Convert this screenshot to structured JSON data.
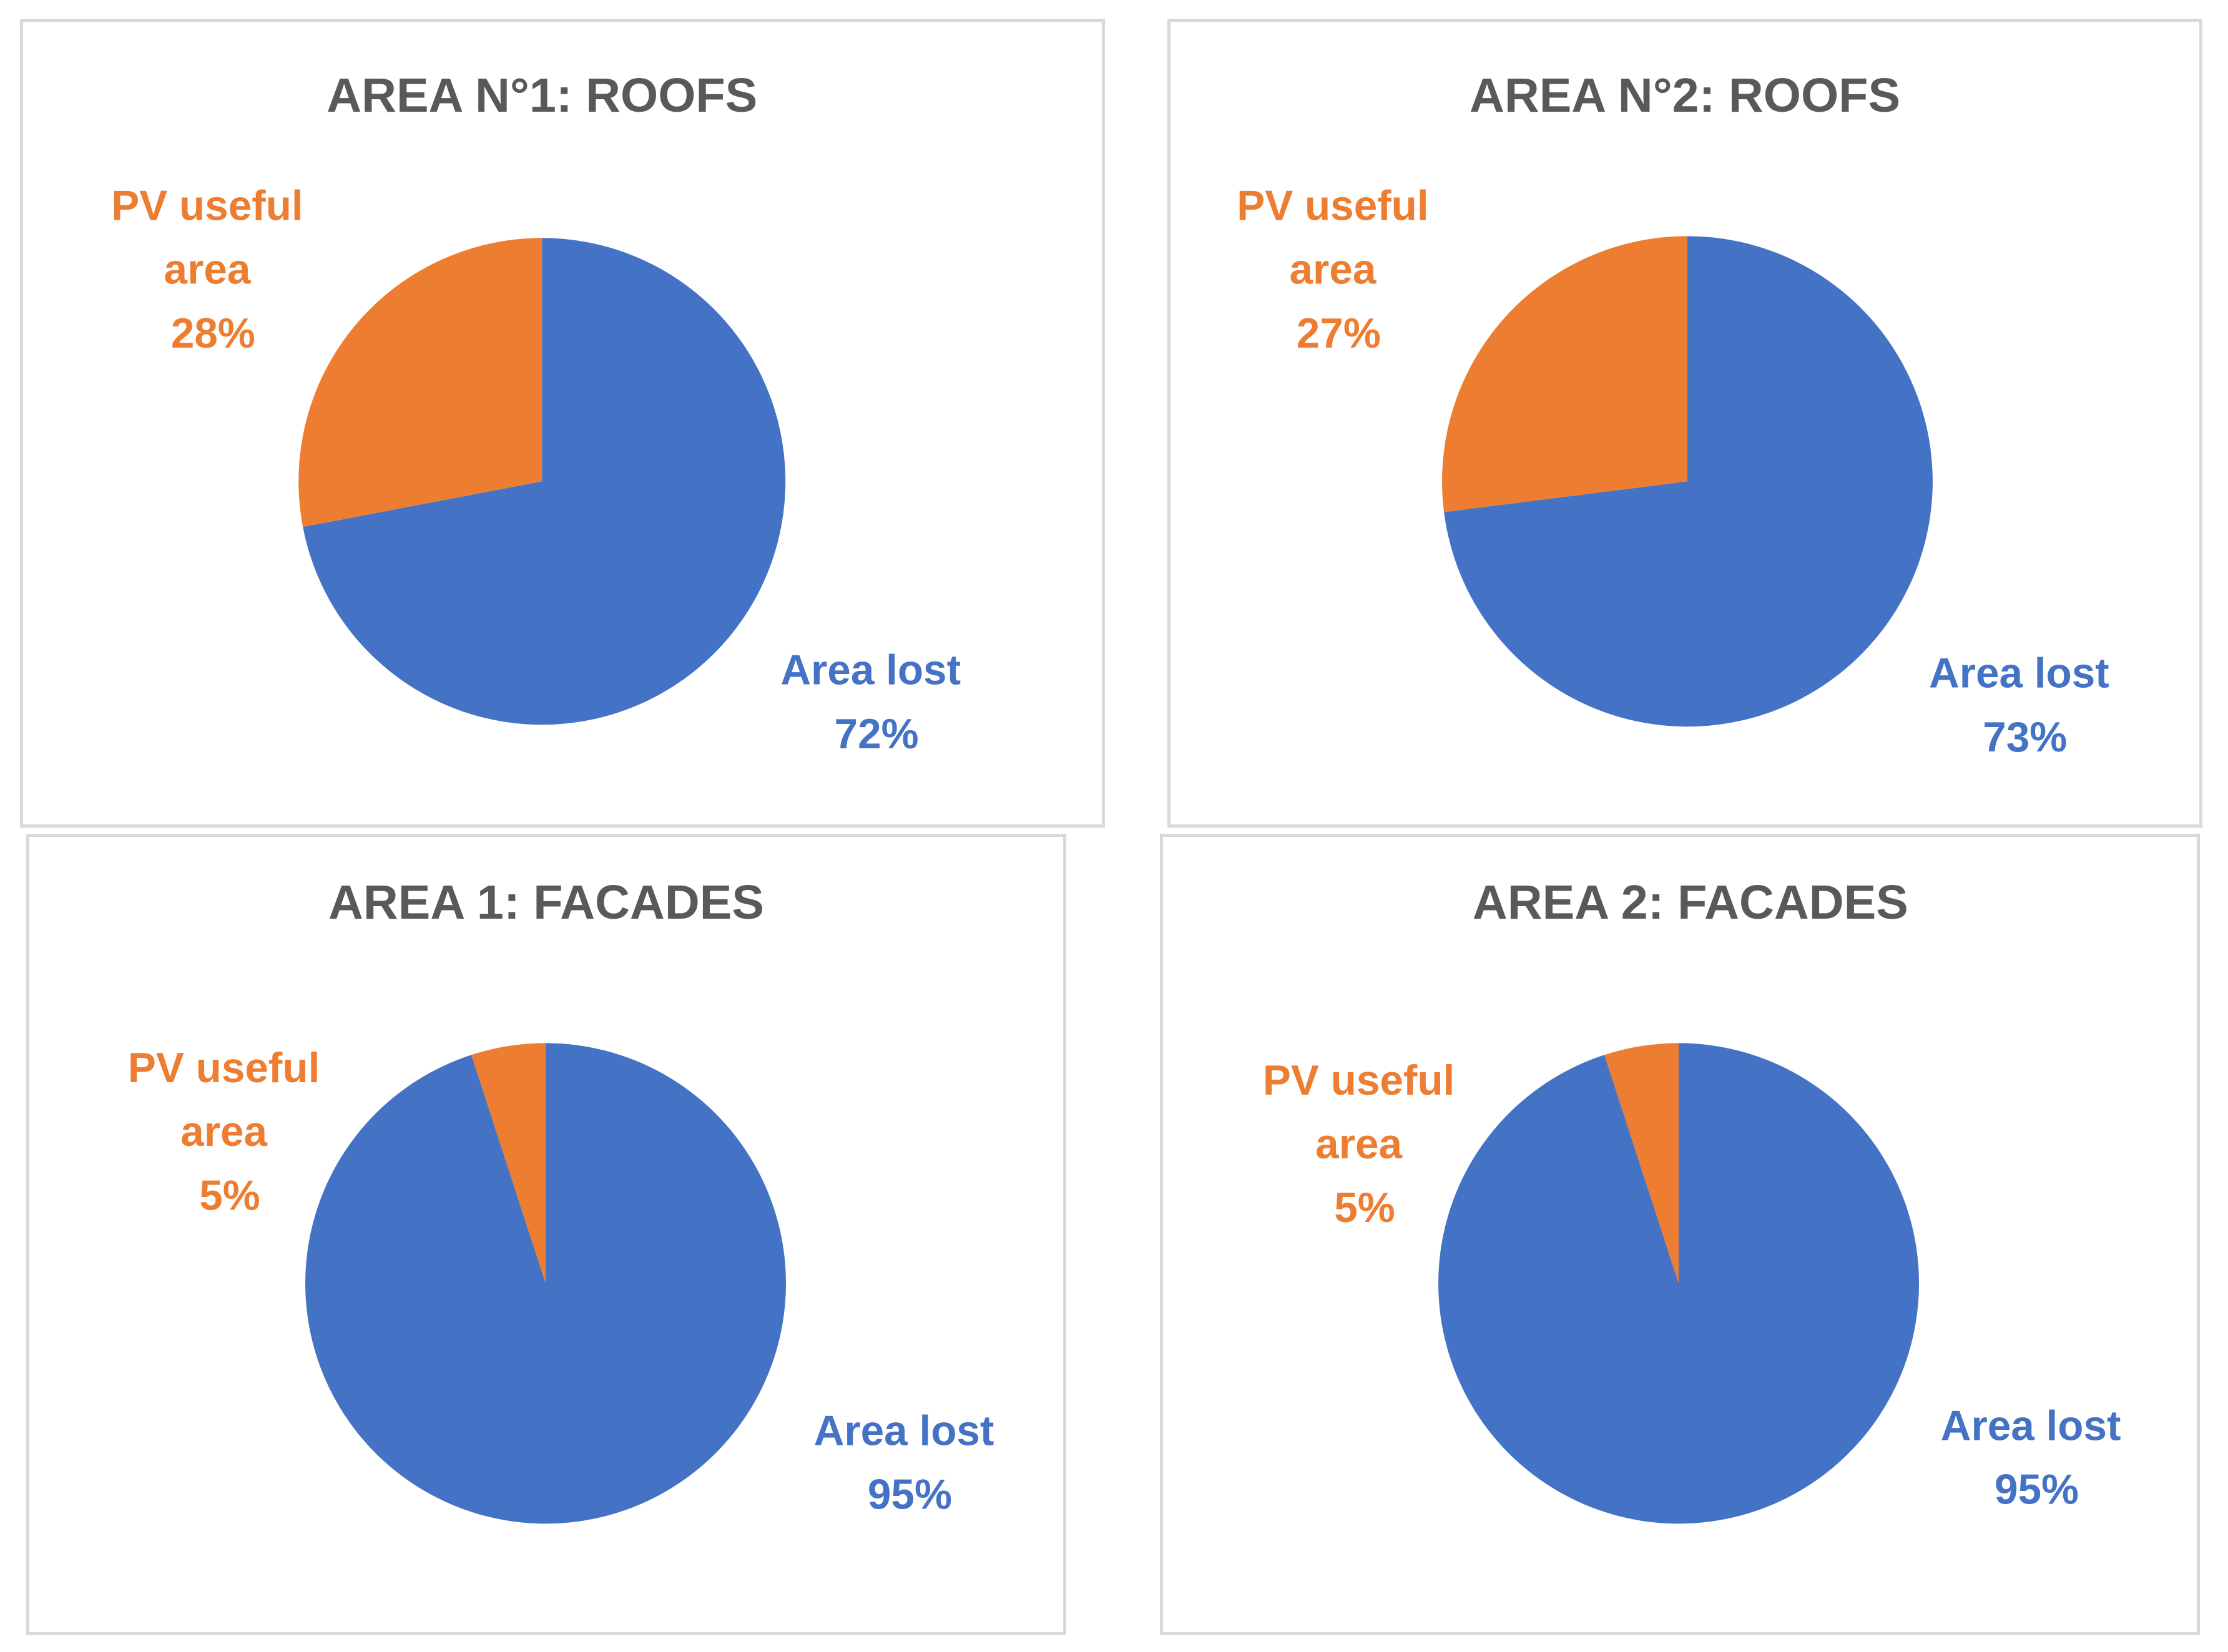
{
  "chart_data": [
    {
      "type": "pie",
      "title": "AREA N°1: ROOFS",
      "slices": [
        {
          "name": "Area lost",
          "value": 72,
          "label_lines": [
            "Area lost",
            "72%"
          ],
          "color": "#4472C4"
        },
        {
          "name": "PV useful area",
          "value": 28,
          "label_lines": [
            "PV useful",
            "area",
            "28%"
          ],
          "color": "#ED7D31"
        }
      ]
    },
    {
      "type": "pie",
      "title": "AREA N°2: ROOFS",
      "slices": [
        {
          "name": "Area lost",
          "value": 73,
          "label_lines": [
            "Area lost",
            "73%"
          ],
          "color": "#4472C4"
        },
        {
          "name": "PV useful area",
          "value": 27,
          "label_lines": [
            "PV useful",
            "area",
            "27%"
          ],
          "color": "#ED7D31"
        }
      ]
    },
    {
      "type": "pie",
      "title": "AREA 1: FACADES",
      "slices": [
        {
          "name": "Area lost",
          "value": 95,
          "label_lines": [
            "Area lost",
            "95%"
          ],
          "color": "#4472C4"
        },
        {
          "name": "PV useful area",
          "value": 5,
          "label_lines": [
            "PV useful",
            "area",
            "5%"
          ],
          "color": "#ED7D31"
        }
      ]
    },
    {
      "type": "pie",
      "title": "AREA 2: FACADES",
      "slices": [
        {
          "name": "Area lost",
          "value": 95,
          "label_lines": [
            "Area lost",
            "95%"
          ],
          "color": "#4472C4"
        },
        {
          "name": "PV useful area",
          "value": 5,
          "label_lines": [
            "PV useful",
            "area",
            "5%"
          ],
          "color": "#ED7D31"
        }
      ]
    }
  ]
}
